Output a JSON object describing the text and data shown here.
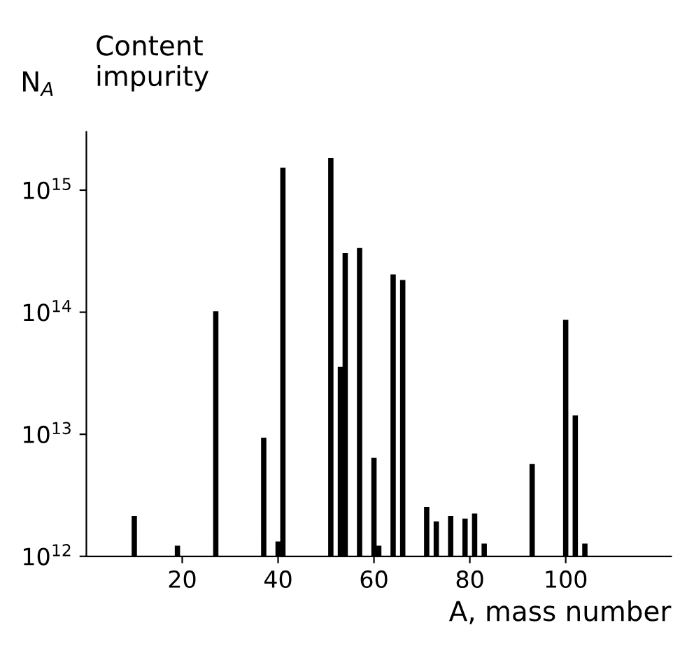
{
  "chart_data": {
    "type": "bar",
    "ylabel": "N$_{A}$",
    "xlabel": "A, mass number",
    "annotations": [
      "Content\nimpurity"
    ],
    "x": [
      10,
      19,
      27,
      37,
      40,
      41,
      51,
      53,
      54,
      57,
      60,
      61,
      64,
      66,
      71,
      73,
      76,
      79,
      81,
      83,
      93,
      100,
      102,
      104
    ],
    "values": [
      2100000000000.0,
      1200000000000.0,
      100000000000000.0,
      9200000000000.0,
      1300000000000.0,
      1500000000000000.0,
      1800000000000000.0,
      35000000000000.0,
      300000000000000.0,
      330000000000000.0,
      6300000000000.0,
      1200000000000.0,
      200000000000000.0,
      180000000000000.0,
      2500000000000.0,
      1900000000000.0,
      2100000000000.0,
      2000000000000.0,
      2200000000000.0,
      1250000000000.0,
      5600000000000.0,
      85000000000000.0,
      14000000000000.0,
      1250000000000.0
    ],
    "color": "#000000",
    "log": "y",
    "xlim": [
      0,
      122
    ],
    "ylim": [
      1000000000000.0,
      3000000000000000.0
    ],
    "xticks": [
      20,
      40,
      60,
      80,
      100
    ],
    "yticks": [
      {
        "value": 1000000000000.0,
        "label": "10$^{12}$"
      },
      {
        "value": 10000000000000.0,
        "label": "10$^{13}$"
      },
      {
        "value": 100000000000000.0,
        "label": "10$^{14}$"
      },
      {
        "value": 1000000000000000.0,
        "label": "10$^{15}$"
      }
    ],
    "grid": false,
    "legend": false
  }
}
